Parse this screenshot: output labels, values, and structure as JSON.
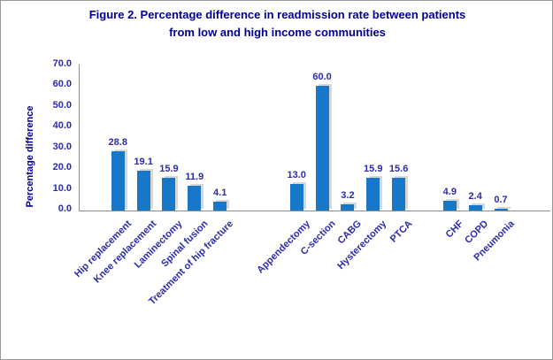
{
  "header": {
    "title_line1": "Figure 2. Percentage difference in readmission rate between patients",
    "title_line2": "from low and high income communities"
  },
  "chart_data": {
    "type": "bar",
    "title": "Figure 2. Percentage difference in readmission rate between patients from low and high income communities",
    "ylabel": "Percentage difference",
    "xlabel": "",
    "ylim": [
      0,
      70
    ],
    "ytick_step": 10,
    "ytick_decimals": 1,
    "grid": "off",
    "legend": "none",
    "bar_color": "#1877c8",
    "label_color": "#2b2baa",
    "title_color": "#000096",
    "axis_color": "#8c8c8c",
    "groups": [
      {
        "categories": [
          "Hip replacement",
          "Knee replacement",
          "Laminectomy",
          "Spinal fusion",
          "Treatment of hip fracture"
        ],
        "values": [
          28.8,
          19.1,
          15.9,
          11.9,
          4.1
        ]
      },
      {
        "categories": [
          "Appendectomy",
          "C-section",
          "CABG",
          "Hysterectomy",
          "PTCA"
        ],
        "values": [
          13.0,
          60.0,
          3.2,
          15.9,
          15.6
        ]
      },
      {
        "categories": [
          "CHF",
          "COPD",
          "Pneumonia"
        ],
        "values": [
          4.9,
          2.4,
          0.7
        ]
      }
    ]
  }
}
